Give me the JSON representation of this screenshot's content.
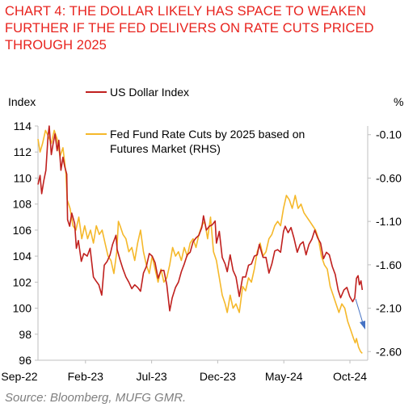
{
  "title": "CHART 4: THE DOLLAR LIKELY HAS SPACE TO WEAKEN FURTHER IF THE FED DELIVERS ON RATE CUTS PRICED THROUGH 2025",
  "source": "Source: Bloomberg, MUFG GMR.",
  "chart_data": {
    "type": "line",
    "ylabel_left": "Index",
    "ylabel_right": "%",
    "x_tick_labels": [
      "Sep-22",
      "Feb-23",
      "Jul-23",
      "Dec-23",
      "May-24",
      "Oct-24"
    ],
    "x_range": [
      "2022-09-01",
      "2024-10-31"
    ],
    "ylim_left": [
      96,
      114
    ],
    "yticks_left": [
      96,
      98,
      100,
      102,
      104,
      106,
      108,
      110,
      112,
      114
    ],
    "ylim_right": [
      -2.7,
      0.0
    ],
    "yticks_right": [
      -2.6,
      -2.1,
      -1.6,
      -1.1,
      -0.6,
      -0.1
    ],
    "yticks_right_labels": [
      "-2.60",
      "-2.10",
      "-1.60",
      "-1.10",
      "-0.60",
      "-0.10"
    ],
    "legend_placement": "top-left",
    "grid": false,
    "annotation": "arrow pointing down-right near the end of the series",
    "series": [
      {
        "name": "US Dollar Index",
        "axis": "left",
        "color": "#c0201e",
        "points": [
          [
            "2022-09-01",
            109.5
          ],
          [
            "2022-09-06",
            110.2
          ],
          [
            "2022-09-10",
            108.8
          ],
          [
            "2022-09-15",
            109.8
          ],
          [
            "2022-09-20",
            110.6
          ],
          [
            "2022-09-25",
            113.2
          ],
          [
            "2022-09-28",
            114.0
          ],
          [
            "2022-10-03",
            111.8
          ],
          [
            "2022-10-07",
            112.6
          ],
          [
            "2022-10-12",
            113.4
          ],
          [
            "2022-10-17",
            112.1
          ],
          [
            "2022-10-21",
            112.9
          ],
          [
            "2022-10-26",
            110.6
          ],
          [
            "2022-10-31",
            111.6
          ],
          [
            "2022-11-04",
            110.9
          ],
          [
            "2022-11-09",
            110.3
          ],
          [
            "2022-11-11",
            106.8
          ],
          [
            "2022-11-16",
            106.3
          ],
          [
            "2022-11-21",
            107.3
          ],
          [
            "2022-11-28",
            106.5
          ],
          [
            "2022-12-02",
            104.6
          ],
          [
            "2022-12-07",
            105.2
          ],
          [
            "2022-12-14",
            103.6
          ],
          [
            "2022-12-20",
            104.2
          ],
          [
            "2022-12-28",
            104.0
          ],
          [
            "2023-01-04",
            104.6
          ],
          [
            "2023-01-12",
            102.4
          ],
          [
            "2023-01-18",
            102.1
          ],
          [
            "2023-01-25",
            101.8
          ],
          [
            "2023-02-01",
            101.0
          ],
          [
            "2023-02-07",
            103.3
          ],
          [
            "2023-02-14",
            103.6
          ],
          [
            "2023-02-21",
            104.1
          ],
          [
            "2023-02-27",
            104.9
          ],
          [
            "2023-03-07",
            105.6
          ],
          [
            "2023-03-10",
            104.5
          ],
          [
            "2023-03-17",
            103.7
          ],
          [
            "2023-03-24",
            103.0
          ],
          [
            "2023-03-31",
            102.4
          ],
          [
            "2023-04-07",
            102.0
          ],
          [
            "2023-04-14",
            101.5
          ],
          [
            "2023-04-21",
            101.8
          ],
          [
            "2023-04-28",
            101.6
          ],
          [
            "2023-05-05",
            101.3
          ],
          [
            "2023-05-12",
            102.7
          ],
          [
            "2023-05-19",
            103.2
          ],
          [
            "2023-05-26",
            104.2
          ],
          [
            "2023-06-02",
            104.0
          ],
          [
            "2023-06-09",
            103.5
          ],
          [
            "2023-06-16",
            102.3
          ],
          [
            "2023-06-23",
            102.9
          ],
          [
            "2023-06-30",
            102.9
          ],
          [
            "2023-07-07",
            101.8
          ],
          [
            "2023-07-14",
            99.8
          ],
          [
            "2023-07-20",
            100.8
          ],
          [
            "2023-07-28",
            101.6
          ],
          [
            "2023-08-04",
            102.0
          ],
          [
            "2023-08-11",
            102.8
          ],
          [
            "2023-08-18",
            103.4
          ],
          [
            "2023-08-25",
            104.1
          ],
          [
            "2023-09-01",
            104.3
          ],
          [
            "2023-09-08",
            105.1
          ],
          [
            "2023-09-15",
            105.4
          ],
          [
            "2023-09-22",
            105.6
          ],
          [
            "2023-09-29",
            106.2
          ],
          [
            "2023-10-03",
            107.1
          ],
          [
            "2023-10-10",
            106.0
          ],
          [
            "2023-10-17",
            106.3
          ],
          [
            "2023-10-24",
            106.4
          ],
          [
            "2023-10-31",
            106.7
          ],
          [
            "2023-11-03",
            105.0
          ],
          [
            "2023-11-10",
            105.9
          ],
          [
            "2023-11-17",
            103.9
          ],
          [
            "2023-11-24",
            103.4
          ],
          [
            "2023-11-29",
            102.8
          ],
          [
            "2023-12-06",
            104.1
          ],
          [
            "2023-12-13",
            102.9
          ],
          [
            "2023-12-20",
            102.4
          ],
          [
            "2023-12-28",
            100.9
          ],
          [
            "2024-01-05",
            102.4
          ],
          [
            "2024-01-12",
            102.4
          ],
          [
            "2024-01-19",
            103.3
          ],
          [
            "2024-01-26",
            103.4
          ],
          [
            "2024-02-02",
            104.0
          ],
          [
            "2024-02-09",
            104.1
          ],
          [
            "2024-02-14",
            104.9
          ],
          [
            "2024-02-23",
            103.9
          ],
          [
            "2024-03-01",
            103.9
          ],
          [
            "2024-03-08",
            102.7
          ],
          [
            "2024-03-15",
            103.4
          ],
          [
            "2024-03-22",
            104.4
          ],
          [
            "2024-03-29",
            104.5
          ],
          [
            "2024-04-05",
            104.3
          ],
          [
            "2024-04-12",
            105.9
          ],
          [
            "2024-04-16",
            106.3
          ],
          [
            "2024-04-23",
            105.8
          ],
          [
            "2024-04-30",
            106.2
          ],
          [
            "2024-05-07",
            105.4
          ],
          [
            "2024-05-15",
            104.3
          ],
          [
            "2024-05-22",
            104.9
          ],
          [
            "2024-05-29",
            105.1
          ],
          [
            "2024-06-05",
            104.1
          ],
          [
            "2024-06-12",
            104.9
          ],
          [
            "2024-06-19",
            105.3
          ],
          [
            "2024-06-26",
            106.0
          ],
          [
            "2024-07-03",
            105.4
          ],
          [
            "2024-07-10",
            105.0
          ],
          [
            "2024-07-17",
            103.8
          ],
          [
            "2024-07-24",
            104.3
          ],
          [
            "2024-07-31",
            104.1
          ],
          [
            "2024-08-07",
            103.2
          ],
          [
            "2024-08-14",
            102.6
          ],
          [
            "2024-08-21",
            101.4
          ],
          [
            "2024-08-27",
            100.8
          ],
          [
            "2024-09-04",
            101.4
          ],
          [
            "2024-09-11",
            101.6
          ],
          [
            "2024-09-18",
            100.9
          ],
          [
            "2024-09-25",
            100.5
          ],
          [
            "2024-09-30",
            100.8
          ],
          [
            "2024-10-04",
            102.3
          ],
          [
            "2024-10-08",
            102.5
          ],
          [
            "2024-10-11",
            101.8
          ],
          [
            "2024-10-15",
            102.1
          ],
          [
            "2024-10-18",
            101.4
          ]
        ]
      },
      {
        "name": "Fed Fund Rate Cuts by 2025 based on Futures Market (RHS)",
        "axis": "right",
        "color": "#f5b82a",
        "points": [
          [
            "2022-09-01",
            -0.15
          ],
          [
            "2022-09-06",
            -0.3
          ],
          [
            "2022-09-12",
            -0.2
          ],
          [
            "2022-09-19",
            -0.05
          ],
          [
            "2022-09-26",
            -0.12
          ],
          [
            "2022-10-03",
            -0.2
          ],
          [
            "2022-10-10",
            -0.05
          ],
          [
            "2022-10-17",
            -0.15
          ],
          [
            "2022-10-24",
            -0.35
          ],
          [
            "2022-10-31",
            -0.25
          ],
          [
            "2022-11-07",
            -0.55
          ],
          [
            "2022-11-10",
            -0.85
          ],
          [
            "2022-11-17",
            -0.95
          ],
          [
            "2022-11-24",
            -1.15
          ],
          [
            "2022-12-01",
            -1.2
          ],
          [
            "2022-12-08",
            -1.05
          ],
          [
            "2022-12-15",
            -1.3
          ],
          [
            "2022-12-22",
            -1.15
          ],
          [
            "2022-12-29",
            -1.3
          ],
          [
            "2023-01-05",
            -1.2
          ],
          [
            "2023-01-12",
            -1.35
          ],
          [
            "2023-01-19",
            -1.15
          ],
          [
            "2023-01-26",
            -1.25
          ],
          [
            "2023-02-02",
            -1.2
          ],
          [
            "2023-02-09",
            -1.35
          ],
          [
            "2023-02-16",
            -1.5
          ],
          [
            "2023-02-23",
            -1.55
          ],
          [
            "2023-03-02",
            -1.7
          ],
          [
            "2023-03-09",
            -1.45
          ],
          [
            "2023-03-13",
            -1.1
          ],
          [
            "2023-03-17",
            -1.15
          ],
          [
            "2023-03-24",
            -1.25
          ],
          [
            "2023-03-31",
            -1.3
          ],
          [
            "2023-04-07",
            -1.45
          ],
          [
            "2023-04-14",
            -1.4
          ],
          [
            "2023-04-21",
            -1.55
          ],
          [
            "2023-04-28",
            -1.35
          ],
          [
            "2023-05-05",
            -1.2
          ],
          [
            "2023-05-12",
            -1.45
          ],
          [
            "2023-05-19",
            -1.6
          ],
          [
            "2023-05-26",
            -1.7
          ],
          [
            "2023-06-02",
            -1.5
          ],
          [
            "2023-06-09",
            -1.65
          ],
          [
            "2023-06-16",
            -1.8
          ],
          [
            "2023-06-23",
            -1.65
          ],
          [
            "2023-06-30",
            -1.8
          ],
          [
            "2023-07-07",
            -1.75
          ],
          [
            "2023-07-14",
            -1.6
          ],
          [
            "2023-07-21",
            -1.4
          ],
          [
            "2023-07-28",
            -1.5
          ],
          [
            "2023-08-04",
            -1.45
          ],
          [
            "2023-08-11",
            -1.55
          ],
          [
            "2023-08-18",
            -1.4
          ],
          [
            "2023-08-25",
            -1.5
          ],
          [
            "2023-09-01",
            -1.35
          ],
          [
            "2023-09-08",
            -1.3
          ],
          [
            "2023-09-15",
            -1.4
          ],
          [
            "2023-09-22",
            -1.25
          ],
          [
            "2023-09-29",
            -1.15
          ],
          [
            "2023-10-06",
            -1.1
          ],
          [
            "2023-10-13",
            -1.3
          ],
          [
            "2023-10-20",
            -1.05
          ],
          [
            "2023-10-27",
            -1.45
          ],
          [
            "2023-11-03",
            -1.55
          ],
          [
            "2023-11-10",
            -1.75
          ],
          [
            "2023-11-17",
            -1.95
          ],
          [
            "2023-11-24",
            -2.05
          ],
          [
            "2023-11-29",
            -2.15
          ],
          [
            "2023-12-06",
            -1.95
          ],
          [
            "2023-12-13",
            -2.1
          ],
          [
            "2023-12-20",
            -2.05
          ],
          [
            "2023-12-28",
            -2.15
          ],
          [
            "2024-01-05",
            -1.85
          ],
          [
            "2024-01-12",
            -1.9
          ],
          [
            "2024-01-19",
            -1.75
          ],
          [
            "2024-01-26",
            -1.8
          ],
          [
            "2024-02-02",
            -1.65
          ],
          [
            "2024-02-09",
            -1.45
          ],
          [
            "2024-02-16",
            -1.35
          ],
          [
            "2024-02-23",
            -1.5
          ],
          [
            "2024-03-01",
            -1.45
          ],
          [
            "2024-03-08",
            -1.3
          ],
          [
            "2024-03-15",
            -1.25
          ],
          [
            "2024-03-22",
            -1.15
          ],
          [
            "2024-03-29",
            -1.1
          ],
          [
            "2024-04-05",
            -1.15
          ],
          [
            "2024-04-12",
            -0.95
          ],
          [
            "2024-04-19",
            -0.8
          ],
          [
            "2024-04-26",
            -0.85
          ],
          [
            "2024-05-03",
            -0.95
          ],
          [
            "2024-05-10",
            -0.8
          ],
          [
            "2024-05-17",
            -0.95
          ],
          [
            "2024-05-24",
            -0.9
          ],
          [
            "2024-05-31",
            -1.0
          ],
          [
            "2024-06-07",
            -1.05
          ],
          [
            "2024-06-14",
            -1.1
          ],
          [
            "2024-06-21",
            -1.15
          ],
          [
            "2024-06-28",
            -1.2
          ],
          [
            "2024-07-05",
            -1.3
          ],
          [
            "2024-07-12",
            -1.5
          ],
          [
            "2024-07-19",
            -1.6
          ],
          [
            "2024-07-26",
            -1.65
          ],
          [
            "2024-08-02",
            -1.85
          ],
          [
            "2024-08-09",
            -1.95
          ],
          [
            "2024-08-16",
            -2.05
          ],
          [
            "2024-08-23",
            -2.15
          ],
          [
            "2024-08-30",
            -2.05
          ],
          [
            "2024-09-06",
            -2.1
          ],
          [
            "2024-09-13",
            -2.25
          ],
          [
            "2024-09-20",
            -2.35
          ],
          [
            "2024-09-27",
            -2.45
          ],
          [
            "2024-10-01",
            -2.5
          ],
          [
            "2024-10-04",
            -2.45
          ],
          [
            "2024-10-09",
            -2.55
          ],
          [
            "2024-10-14",
            -2.6
          ],
          [
            "2024-10-18",
            -2.62
          ]
        ]
      }
    ]
  }
}
